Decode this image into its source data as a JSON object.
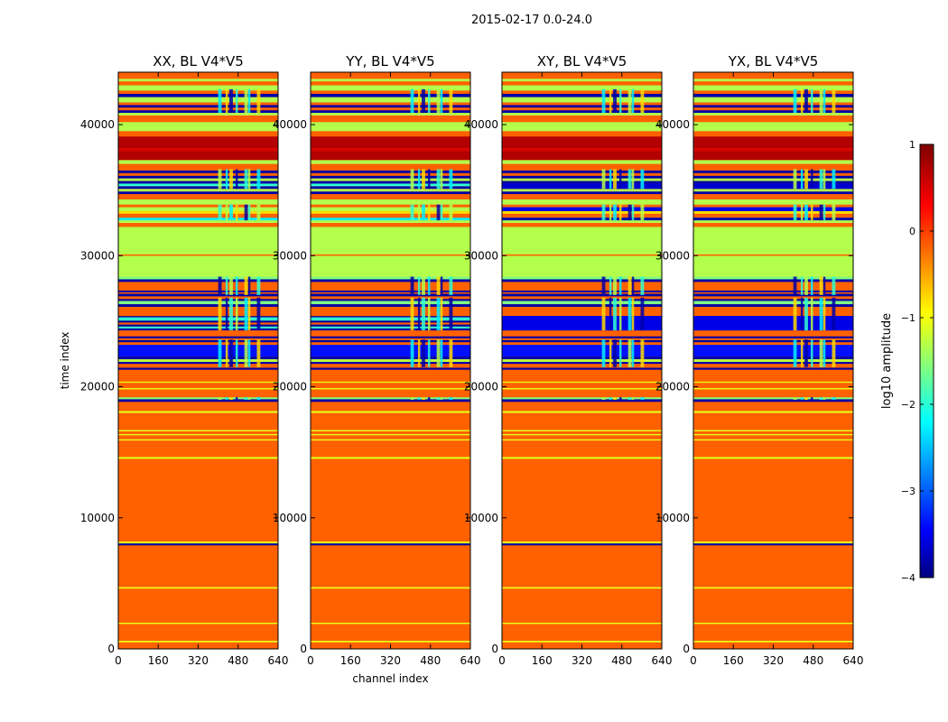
{
  "figure": {
    "suptitle": "2015-02-17 0.0-24.0"
  },
  "chart_data": [
    {
      "type": "heatmap",
      "title": "XX, BL V4*V5",
      "xlabel": "",
      "ylabel": "time index",
      "xlim": [
        0,
        640
      ],
      "ylim": [
        0,
        44000
      ],
      "xticks": [
        0,
        160,
        320,
        480,
        640
      ],
      "yticks": [
        0,
        10000,
        20000,
        30000,
        40000
      ],
      "yticklabels_shown": true
    },
    {
      "type": "heatmap",
      "title": "YY, BL V4*V5",
      "xlabel": "channel index",
      "ylabel": "",
      "xlim": [
        0,
        640
      ],
      "ylim": [
        0,
        44000
      ],
      "xticks": [
        0,
        160,
        320,
        480,
        640
      ],
      "yticks": [
        0,
        10000,
        20000,
        30000,
        40000
      ],
      "yticklabels_shown": true
    },
    {
      "type": "heatmap",
      "title": "XY, BL V4*V5",
      "xlabel": "",
      "ylabel": "",
      "xlim": [
        0,
        640
      ],
      "ylim": [
        0,
        44000
      ],
      "xticks": [
        0,
        160,
        320,
        480,
        640
      ],
      "yticks": [
        0,
        10000,
        20000,
        30000,
        40000
      ],
      "yticklabels_shown": true
    },
    {
      "type": "heatmap",
      "title": "YX, BL V4*V5",
      "xlabel": "",
      "ylabel": "",
      "xlim": [
        0,
        640
      ],
      "ylim": [
        0,
        44000
      ],
      "xticks": [
        0,
        160,
        320,
        480,
        640
      ],
      "yticks": [
        0,
        10000,
        20000,
        30000,
        40000
      ],
      "yticklabels_shown": true
    }
  ],
  "colorbar": {
    "label": "log10 amplitude",
    "colormap": "jet",
    "range": [
      -4,
      1
    ],
    "ticks": [
      -4,
      -3,
      -2,
      -1,
      0,
      1
    ]
  },
  "bands": [
    {
      "t0": 0,
      "t1": 500,
      "value": -0.1
    },
    {
      "t0": 500,
      "t1": 620,
      "value": -1.0
    },
    {
      "t0": 620,
      "t1": 1900,
      "value": -0.1
    },
    {
      "t0": 1900,
      "t1": 2000,
      "value": -1.0
    },
    {
      "t0": 2000,
      "t1": 4600,
      "value": -0.1
    },
    {
      "t0": 4600,
      "t1": 4720,
      "value": -1.0
    },
    {
      "t0": 4720,
      "t1": 7900,
      "value": -0.1
    },
    {
      "t0": 7900,
      "t1": 8050,
      "value": -3.8
    },
    {
      "t0": 8050,
      "t1": 8200,
      "value": -1.0
    },
    {
      "t0": 8200,
      "t1": 14500,
      "value": -0.1
    },
    {
      "t0": 14500,
      "t1": 14650,
      "value": -1.0
    },
    {
      "t0": 14650,
      "t1": 15900,
      "value": -0.1
    },
    {
      "t0": 15900,
      "t1": 16000,
      "value": -1.0
    },
    {
      "t0": 16000,
      "t1": 16300,
      "value": -0.1
    },
    {
      "t0": 16300,
      "t1": 16400,
      "value": -1.0
    },
    {
      "t0": 16400,
      "t1": 16600,
      "value": -0.1
    },
    {
      "t0": 16600,
      "t1": 16700,
      "value": -1.0
    },
    {
      "t0": 16700,
      "t1": 18000,
      "value": -0.1
    },
    {
      "t0": 18000,
      "t1": 18150,
      "value": -1.0
    },
    {
      "t0": 18150,
      "t1": 18850,
      "value": -0.1
    },
    {
      "t0": 18850,
      "t1": 19050,
      "value": -3.8
    },
    {
      "t0": 19050,
      "t1": 19200,
      "value": -1.5
    },
    {
      "t0": 19200,
      "t1": 19800,
      "value": -0.1
    },
    {
      "t0": 19800,
      "t1": 19900,
      "value": -1.0
    },
    {
      "t0": 19900,
      "t1": 20300,
      "value": -0.1
    },
    {
      "t0": 20300,
      "t1": 20400,
      "value": -1.0
    },
    {
      "t0": 20400,
      "t1": 21300,
      "value": -0.1
    },
    {
      "t0": 21300,
      "t1": 21450,
      "value": -3.8
    },
    {
      "t0": 21450,
      "t1": 21750,
      "value": -0.1
    },
    {
      "t0": 21750,
      "t1": 21900,
      "value": -3.8
    },
    {
      "t0": 21900,
      "t1": 22100,
      "value": -1.2
    },
    {
      "t0": 22100,
      "t1": 22300,
      "value": -3.8
    },
    {
      "t0": 22300,
      "t1": 23200,
      "value": -3.3
    },
    {
      "t0": 23200,
      "t1": 23400,
      "value": -0.1
    },
    {
      "t0": 23400,
      "t1": 23550,
      "value": -3.8
    },
    {
      "t0": 23550,
      "t1": 23700,
      "value": -0.1
    },
    {
      "t0": 23700,
      "t1": 23850,
      "value": -3.8
    },
    {
      "t0": 23850,
      "t1": 24300,
      "value": -0.1
    },
    {
      "t0": 24300,
      "t1": 24450,
      "value": -3.8
    },
    {
      "t0": 24450,
      "t1": 24600,
      "value": -1.9
    },
    {
      "t0": 24600,
      "t1": 24750,
      "value": -3.8
    },
    {
      "t0": 24750,
      "t1": 24900,
      "value": -0.1
    },
    {
      "t0": 24900,
      "t1": 25050,
      "value": -3.8
    },
    {
      "t0": 25050,
      "t1": 25300,
      "value": -1.9
    },
    {
      "t0": 25300,
      "t1": 25400,
      "value": -3.8
    },
    {
      "t0": 25400,
      "t1": 26100,
      "value": -0.1
    },
    {
      "t0": 26100,
      "t1": 26300,
      "value": -3.8
    },
    {
      "t0": 26300,
      "t1": 26550,
      "value": -1.5
    },
    {
      "t0": 26550,
      "t1": 26700,
      "value": -3.8
    },
    {
      "t0": 26700,
      "t1": 26900,
      "value": -0.1
    },
    {
      "t0": 26900,
      "t1": 27100,
      "value": -3.8
    },
    {
      "t0": 27100,
      "t1": 27200,
      "value": -0.1
    },
    {
      "t0": 27200,
      "t1": 27350,
      "value": -3.8
    },
    {
      "t0": 27350,
      "t1": 27550,
      "value": -0.1
    },
    {
      "t0": 27550,
      "t1": 28000,
      "value": -0.1
    },
    {
      "t0": 28000,
      "t1": 28200,
      "value": -3.8
    },
    {
      "t0": 28200,
      "t1": 28400,
      "value": -1.5
    },
    {
      "t0": 28400,
      "t1": 30000,
      "value": -1.25
    },
    {
      "t0": 30000,
      "t1": 30100,
      "value": -0.1
    },
    {
      "t0": 30100,
      "t1": 32200,
      "value": -1.25
    },
    {
      "t0": 32200,
      "t1": 32500,
      "value": -0.1
    },
    {
      "t0": 32500,
      "t1": 32700,
      "value": -1.25
    },
    {
      "t0": 32700,
      "t1": 32900,
      "value": -2.2
    },
    {
      "t0": 32900,
      "t1": 33200,
      "value": -0.1
    },
    {
      "t0": 33200,
      "t1": 33400,
      "value": -0.7
    },
    {
      "t0": 33400,
      "t1": 33700,
      "value": -1.25
    },
    {
      "t0": 33700,
      "t1": 33900,
      "value": -0.1
    },
    {
      "t0": 33900,
      "t1": 34300,
      "value": -1.25
    },
    {
      "t0": 34300,
      "t1": 34700,
      "value": -0.1
    },
    {
      "t0": 34700,
      "t1": 34900,
      "value": -3.8
    },
    {
      "t0": 34900,
      "t1": 35100,
      "value": -1.25
    },
    {
      "t0": 35100,
      "t1": 35300,
      "value": -3.8
    },
    {
      "t0": 35300,
      "t1": 35500,
      "value": -1.9
    },
    {
      "t0": 35500,
      "t1": 35700,
      "value": -3.8
    },
    {
      "t0": 35700,
      "t1": 35900,
      "value": -1.25
    },
    {
      "t0": 35900,
      "t1": 36100,
      "value": -3.8
    },
    {
      "t0": 36100,
      "t1": 36300,
      "value": -0.1
    },
    {
      "t0": 36300,
      "t1": 36500,
      "value": -3.8
    },
    {
      "t0": 36500,
      "t1": 37000,
      "value": -0.1
    },
    {
      "t0": 37000,
      "t1": 37300,
      "value": -1.25
    },
    {
      "t0": 37300,
      "t1": 38000,
      "value": 0.75
    },
    {
      "t0": 38000,
      "t1": 38200,
      "value": 0.55
    },
    {
      "t0": 38200,
      "t1": 39100,
      "value": 0.75
    },
    {
      "t0": 39100,
      "t1": 39500,
      "value": -0.1
    },
    {
      "t0": 39500,
      "t1": 40200,
      "value": -1.25
    },
    {
      "t0": 40200,
      "t1": 40700,
      "value": -0.1
    },
    {
      "t0": 40700,
      "t1": 40900,
      "value": -1.25
    },
    {
      "t0": 40900,
      "t1": 41100,
      "value": -3.8
    },
    {
      "t0": 41100,
      "t1": 41300,
      "value": -0.1
    },
    {
      "t0": 41300,
      "t1": 41500,
      "value": -3.8
    },
    {
      "t0": 41500,
      "t1": 41700,
      "value": -0.1
    },
    {
      "t0": 41700,
      "t1": 42100,
      "value": -1.25
    },
    {
      "t0": 42100,
      "t1": 42350,
      "value": -3.8
    },
    {
      "t0": 42350,
      "t1": 42600,
      "value": -0.1
    },
    {
      "t0": 42600,
      "t1": 43000,
      "value": -1.25
    },
    {
      "t0": 43000,
      "t1": 43300,
      "value": -0.1
    },
    {
      "t0": 43300,
      "t1": 43500,
      "value": -1.25
    },
    {
      "t0": 43500,
      "t1": 44000,
      "value": -0.1
    }
  ],
  "xy_yx_overrides": [
    {
      "t0": 32700,
      "t1": 32900,
      "value": -3.8
    },
    {
      "t0": 33400,
      "t1": 33700,
      "value": -3.5
    },
    {
      "t0": 35100,
      "t1": 35500,
      "value": -3.6
    },
    {
      "t0": 24300,
      "t1": 25400,
      "value": -3.5
    }
  ]
}
